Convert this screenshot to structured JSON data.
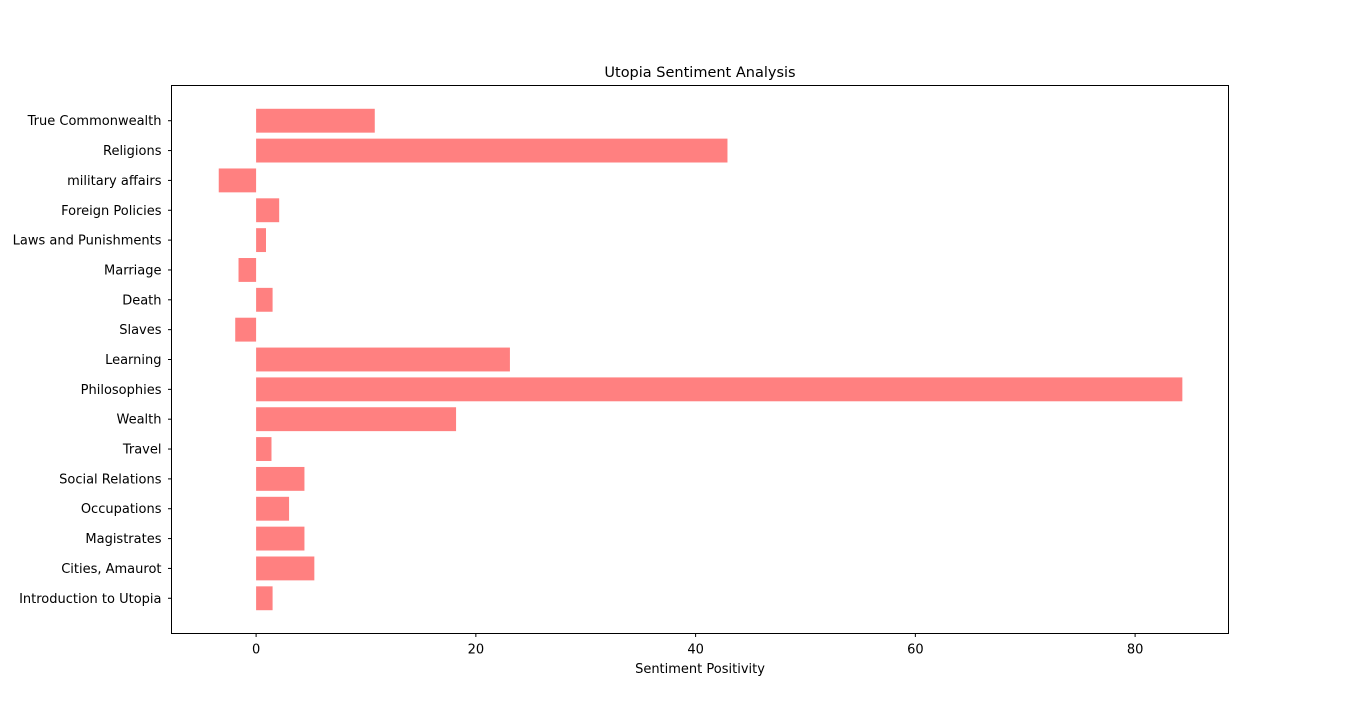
{
  "chart_data": {
    "type": "bar",
    "orientation": "horizontal",
    "title": "Utopia Sentiment Analysis",
    "xlabel": "Sentiment Positivity",
    "ylabel": "",
    "xlim": [
      -7.7,
      88.5
    ],
    "xticks": [
      0,
      20,
      40,
      60,
      80
    ],
    "grid": false,
    "bar_color": "#ff8080",
    "categories": [
      "Introduction to Utopia",
      "Cities, Amaurot",
      "Magistrates",
      "Occupations",
      "Social Relations",
      "Travel",
      "Wealth",
      "Philosophies",
      "Learning",
      "Slaves",
      "Death",
      "Marriage",
      "Laws and Punishments",
      "Foreign Policies",
      "military affairs",
      "Religions",
      "True Commonwealth"
    ],
    "values": [
      1.5,
      5.3,
      4.4,
      3.0,
      4.4,
      1.4,
      18.2,
      84.3,
      23.1,
      -1.9,
      1.5,
      -1.6,
      0.9,
      2.1,
      -3.4,
      42.9,
      10.8
    ]
  }
}
